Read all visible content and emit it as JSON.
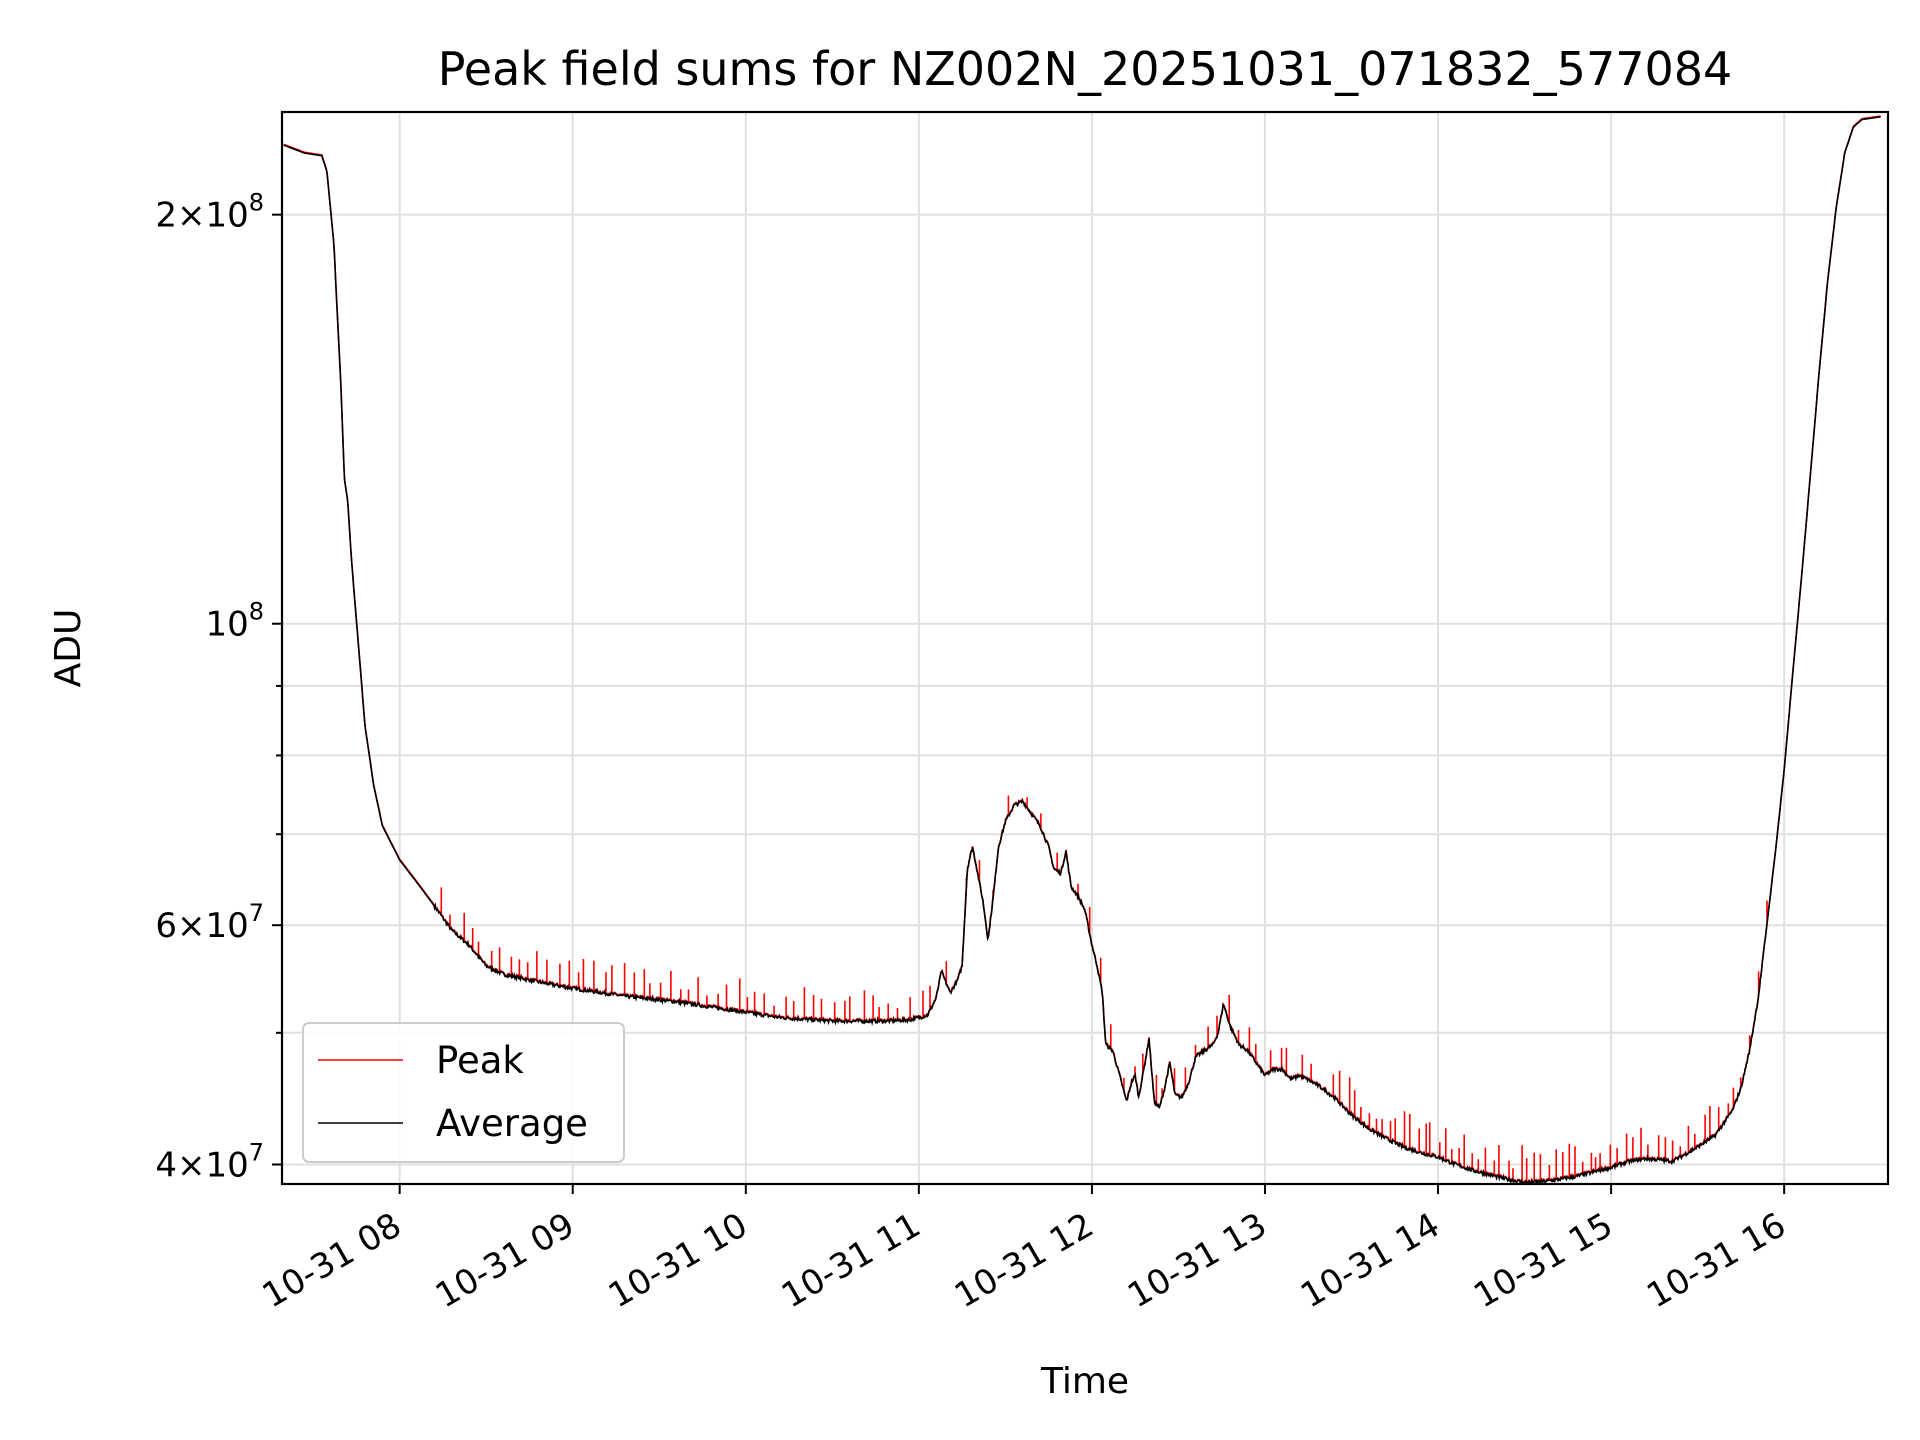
{
  "chart_data": {
    "type": "line",
    "title": "Peak field sums for NZ002N_20251031_071832_577084",
    "xlabel": "Time",
    "ylabel": "ADU",
    "yscale": "log",
    "x_unit": "hours since 10-31 00:00",
    "xlim": [
      7.32,
      16.6
    ],
    "ylim": [
      38700000,
      238000000
    ],
    "grid": true,
    "legend_position": "lower-left",
    "x_ticks": [
      {
        "value": 8,
        "label": "10-31 08"
      },
      {
        "value": 9,
        "label": "10-31 09"
      },
      {
        "value": 10,
        "label": "10-31 10"
      },
      {
        "value": 11,
        "label": "10-31 11"
      },
      {
        "value": 12,
        "label": "10-31 12"
      },
      {
        "value": 13,
        "label": "10-31 13"
      },
      {
        "value": 14,
        "label": "10-31 14"
      },
      {
        "value": 15,
        "label": "10-31 15"
      },
      {
        "value": 16,
        "label": "10-31 16"
      }
    ],
    "y_major_ticks": [
      {
        "value": 40000000,
        "mantissa": "4",
        "times": "×",
        "base": "10",
        "exponent": "7"
      },
      {
        "value": 60000000,
        "mantissa": "6",
        "times": "×",
        "base": "10",
        "exponent": "7"
      },
      {
        "value": 100000000,
        "mantissa": "",
        "times": "",
        "base": "10",
        "exponent": "8"
      },
      {
        "value": 200000000,
        "mantissa": "2",
        "times": "×",
        "base": "10",
        "exponent": "8"
      }
    ],
    "y_minor_ticks": [
      50000000,
      70000000,
      80000000,
      90000000
    ],
    "series": [
      {
        "name": "Average",
        "color": "#000000",
        "points": [
          [
            7.33,
            225000000
          ],
          [
            7.45,
            222000000
          ],
          [
            7.55,
            221000000
          ],
          [
            7.58,
            215000000
          ],
          [
            7.62,
            190000000
          ],
          [
            7.66,
            150000000
          ],
          [
            7.68,
            128000000
          ],
          [
            7.7,
            123000000
          ],
          [
            7.72,
            112000000
          ],
          [
            7.76,
            97000000
          ],
          [
            7.8,
            84000000
          ],
          [
            7.85,
            76000000
          ],
          [
            7.9,
            71000000
          ],
          [
            8.0,
            67000000
          ],
          [
            8.1,
            64500000
          ],
          [
            8.2,
            62000000
          ],
          [
            8.3,
            59500000
          ],
          [
            8.4,
            58000000
          ],
          [
            8.5,
            56000000
          ],
          [
            8.6,
            55200000
          ],
          [
            8.8,
            54500000
          ],
          [
            9.0,
            53900000
          ],
          [
            9.3,
            53200000
          ],
          [
            9.6,
            52700000
          ],
          [
            9.9,
            52000000
          ],
          [
            10.2,
            51300000
          ],
          [
            10.5,
            51000000
          ],
          [
            10.8,
            51000000
          ],
          [
            10.95,
            51100000
          ],
          [
            11.05,
            51500000
          ],
          [
            11.1,
            53000000
          ],
          [
            11.13,
            55500000
          ],
          [
            11.18,
            53500000
          ],
          [
            11.22,
            54500000
          ],
          [
            11.25,
            56000000
          ],
          [
            11.28,
            66000000
          ],
          [
            11.31,
            68500000
          ],
          [
            11.34,
            65500000
          ],
          [
            11.37,
            62500000
          ],
          [
            11.4,
            58500000
          ],
          [
            11.43,
            63000000
          ],
          [
            11.46,
            68500000
          ],
          [
            11.5,
            71500000
          ],
          [
            11.55,
            73500000
          ],
          [
            11.6,
            74000000
          ],
          [
            11.65,
            72500000
          ],
          [
            11.7,
            71000000
          ],
          [
            11.75,
            68500000
          ],
          [
            11.78,
            66000000
          ],
          [
            11.82,
            65500000
          ],
          [
            11.85,
            68000000
          ],
          [
            11.88,
            64000000
          ],
          [
            11.92,
            63000000
          ],
          [
            11.96,
            61500000
          ],
          [
            12.0,
            58000000
          ],
          [
            12.03,
            56000000
          ],
          [
            12.06,
            53500000
          ],
          [
            12.08,
            49000000
          ],
          [
            12.12,
            48500000
          ],
          [
            12.16,
            46500000
          ],
          [
            12.2,
            44500000
          ],
          [
            12.23,
            46000000
          ],
          [
            12.25,
            46500000
          ],
          [
            12.27,
            44800000
          ],
          [
            12.3,
            47000000
          ],
          [
            12.33,
            49500000
          ],
          [
            12.36,
            44500000
          ],
          [
            12.39,
            44000000
          ],
          [
            12.42,
            45500000
          ],
          [
            12.45,
            47500000
          ],
          [
            12.48,
            45000000
          ],
          [
            12.52,
            44800000
          ],
          [
            12.56,
            46000000
          ],
          [
            12.6,
            48000000
          ],
          [
            12.65,
            48500000
          ],
          [
            12.7,
            49000000
          ],
          [
            12.73,
            50000000
          ],
          [
            12.76,
            52500000
          ],
          [
            12.8,
            50500000
          ],
          [
            12.85,
            49000000
          ],
          [
            12.9,
            48500000
          ],
          [
            12.95,
            47500000
          ],
          [
            13.0,
            46500000
          ],
          [
            13.05,
            47000000
          ],
          [
            13.1,
            47000000
          ],
          [
            13.15,
            46200000
          ],
          [
            13.2,
            46500000
          ],
          [
            13.3,
            45800000
          ],
          [
            13.4,
            44800000
          ],
          [
            13.5,
            43500000
          ],
          [
            13.6,
            42500000
          ],
          [
            13.7,
            41800000
          ],
          [
            13.8,
            41200000
          ],
          [
            13.9,
            40800000
          ],
          [
            14.0,
            40500000
          ],
          [
            14.1,
            40000000
          ],
          [
            14.2,
            39600000
          ],
          [
            14.3,
            39300000
          ],
          [
            14.4,
            39000000
          ],
          [
            14.5,
            38800000
          ],
          [
            14.6,
            38850000
          ],
          [
            14.7,
            39000000
          ],
          [
            14.8,
            39200000
          ],
          [
            14.9,
            39500000
          ],
          [
            15.0,
            39800000
          ],
          [
            15.1,
            40200000
          ],
          [
            15.2,
            40400000
          ],
          [
            15.3,
            40300000
          ],
          [
            15.35,
            40200000
          ],
          [
            15.4,
            40500000
          ],
          [
            15.5,
            41200000
          ],
          [
            15.6,
            42000000
          ],
          [
            15.7,
            43800000
          ],
          [
            15.75,
            45500000
          ],
          [
            15.8,
            48500000
          ],
          [
            15.85,
            53000000
          ],
          [
            15.9,
            60000000
          ],
          [
            15.95,
            68000000
          ],
          [
            16.0,
            78000000
          ],
          [
            16.05,
            92000000
          ],
          [
            16.1,
            108000000
          ],
          [
            16.15,
            128000000
          ],
          [
            16.2,
            152000000
          ],
          [
            16.25,
            178000000
          ],
          [
            16.3,
            202000000
          ],
          [
            16.35,
            222000000
          ],
          [
            16.4,
            232000000
          ],
          [
            16.45,
            235000000
          ],
          [
            16.55,
            236000000
          ]
        ]
      },
      {
        "name": "Peak",
        "color": "#ff0000",
        "spike_ranges": [
          {
            "from": 8.25,
            "to": 10.95,
            "step": 0.055,
            "height_fraction": 0.045
          },
          {
            "from": 11.0,
            "to": 11.9,
            "step": 0.09,
            "height_fraction": 0.035
          },
          {
            "from": 12.0,
            "to": 13.3,
            "step": 0.06,
            "height_fraction": 0.04
          },
          {
            "from": 13.4,
            "to": 14.95,
            "step": 0.04,
            "height_fraction": 0.05
          },
          {
            "from": 14.95,
            "to": 15.9,
            "step": 0.045,
            "height_fraction": 0.045
          }
        ]
      }
    ]
  }
}
